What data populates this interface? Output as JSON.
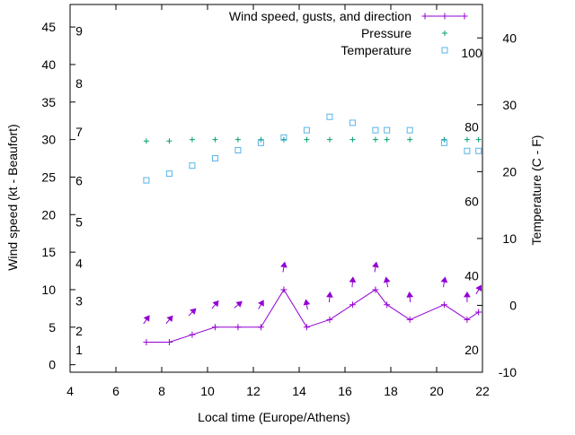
{
  "chart_data": {
    "type": "line",
    "xlabel": "Local time (Europe/Athens)",
    "ylabel_left": "Wind speed (kt - Beaufort)",
    "ylabel_right": "Temperature (C - F)",
    "xlim": [
      4,
      22
    ],
    "ylim_left": [
      -1,
      48
    ],
    "ylim_right": [
      -10,
      45
    ],
    "x_ticks": [
      "4",
      "6",
      "8",
      "10",
      "12",
      "14",
      "16",
      "18",
      "20",
      "22"
    ],
    "y_left_ticks": [
      "0",
      "5",
      "10",
      "15",
      "20",
      "25",
      "30",
      "35",
      "40",
      "45"
    ],
    "y_right_ticks": [
      "-10",
      "0",
      "10",
      "20",
      "30",
      "40"
    ],
    "beaufort_labels": [
      "1",
      "2",
      "3",
      "4",
      "5",
      "6",
      "7",
      "8",
      "9"
    ],
    "fahrenheit_labels": [
      "20",
      "40",
      "60",
      "80",
      "100"
    ],
    "legend_position": "top-right",
    "colors": {
      "wind": "#9400d3",
      "pressure": "#009e73",
      "temperature": "#56b4e9"
    },
    "series": [
      {
        "name": "Wind speed, gusts, and direction",
        "style": "line-with-plus-markers",
        "x": [
          7.33,
          8.33,
          9.33,
          10.33,
          11.33,
          12.33,
          13.33,
          14.33,
          15.33,
          16.33,
          17.33,
          17.83,
          18.83,
          20.33,
          21.33,
          21.83
        ],
        "values": [
          3,
          3,
          4,
          5,
          5,
          5,
          10,
          5,
          6,
          8,
          10,
          8,
          6,
          8,
          6,
          7
        ],
        "direction_arrow_deg": [
          35,
          40,
          45,
          40,
          50,
          30,
          10,
          350,
          5,
          5,
          10,
          350,
          355,
          10,
          360,
          30
        ]
      },
      {
        "name": "Pressure",
        "style": "plus-markers",
        "x": [
          7.33,
          8.33,
          9.33,
          10.33,
          11.33,
          12.33,
          13.33,
          14.33,
          15.33,
          16.33,
          17.33,
          17.83,
          18.83,
          20.33,
          21.33,
          21.83
        ],
        "values": [
          29.8,
          29.8,
          30,
          30,
          30,
          30,
          30,
          30,
          30,
          30,
          30,
          30,
          30,
          30,
          30,
          30
        ]
      },
      {
        "name": "Temperature",
        "style": "open-square-markers",
        "axis": "right",
        "x": [
          7.33,
          8.33,
          9.33,
          10.33,
          11.33,
          12.33,
          13.33,
          14.33,
          15.33,
          16.33,
          17.33,
          17.83,
          18.83,
          20.33,
          21.33,
          21.83
        ],
        "values": [
          18.7,
          19.7,
          20.9,
          22.0,
          23.2,
          24.3,
          25.1,
          26.2,
          28.2,
          27.3,
          26.2,
          26.2,
          26.2,
          24.3,
          23.1,
          23.1
        ]
      }
    ]
  }
}
